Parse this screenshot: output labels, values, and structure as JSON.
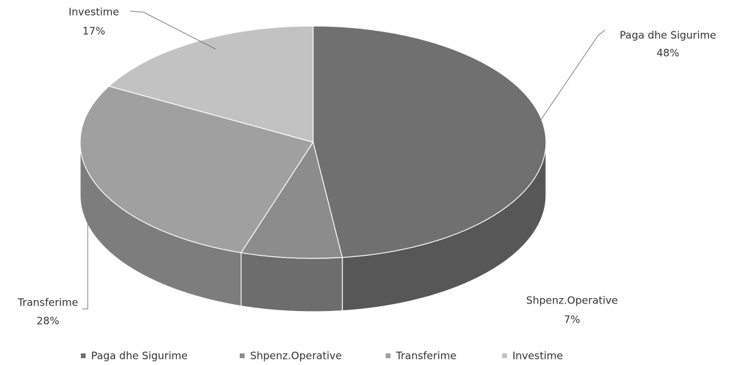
{
  "chart_data": {
    "type": "pie",
    "categories": [
      "Paga dhe Sigurime",
      "Shpenz.Operative",
      "Transferime",
      "Investime"
    ],
    "values": [
      48,
      7,
      28,
      17
    ],
    "value_labels": [
      "48%",
      "7%",
      "28%",
      "17%"
    ],
    "colors": [
      "#707070",
      "#8c8c8c",
      "#a0a0a0",
      "#c2c2c2"
    ],
    "legend": "bottom"
  }
}
